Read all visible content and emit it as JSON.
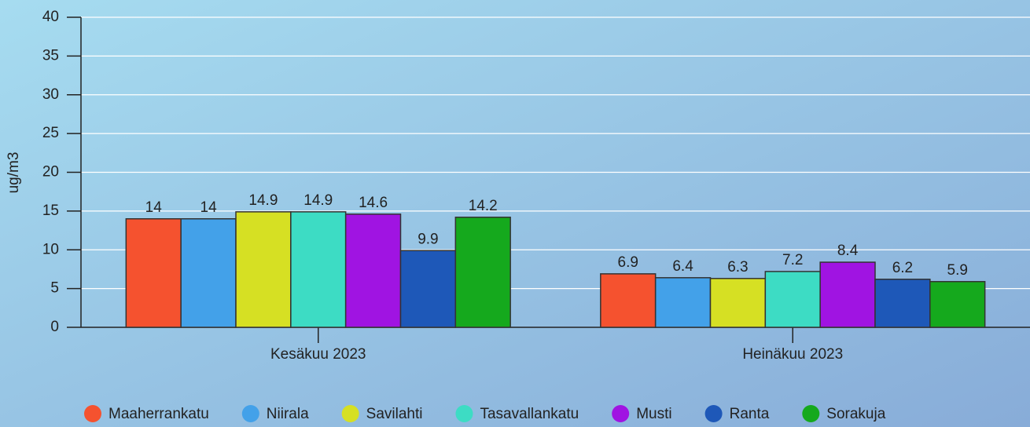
{
  "chart_data": {
    "type": "bar",
    "y_label": "ug/m3",
    "categories": [
      "Kesäkuu 2023",
      "Heinäkuu 2023"
    ],
    "series": [
      {
        "name": "Maaherrankatu",
        "color": "#f5522f",
        "values": [
          14,
          6.9
        ]
      },
      {
        "name": "Niirala",
        "color": "#43a1e9",
        "values": [
          14,
          6.4
        ]
      },
      {
        "name": "Savilahti",
        "color": "#d6e023",
        "values": [
          14.9,
          6.3
        ]
      },
      {
        "name": "Tasavallankatu",
        "color": "#3ddcc4",
        "values": [
          14.9,
          7.2
        ]
      },
      {
        "name": "Musti",
        "color": "#a014e2",
        "values": [
          14.6,
          8.4
        ]
      },
      {
        "name": "Ranta",
        "color": "#1e58b8",
        "values": [
          9.9,
          6.2
        ]
      },
      {
        "name": "Sorakuja",
        "color": "#15a91d",
        "values": [
          14.2,
          5.9
        ]
      }
    ],
    "ylim": [
      0,
      40
    ],
    "yticks": [
      0,
      5,
      10,
      15,
      20,
      25,
      30,
      35,
      40
    ],
    "grid": true,
    "legend": "bottom"
  }
}
